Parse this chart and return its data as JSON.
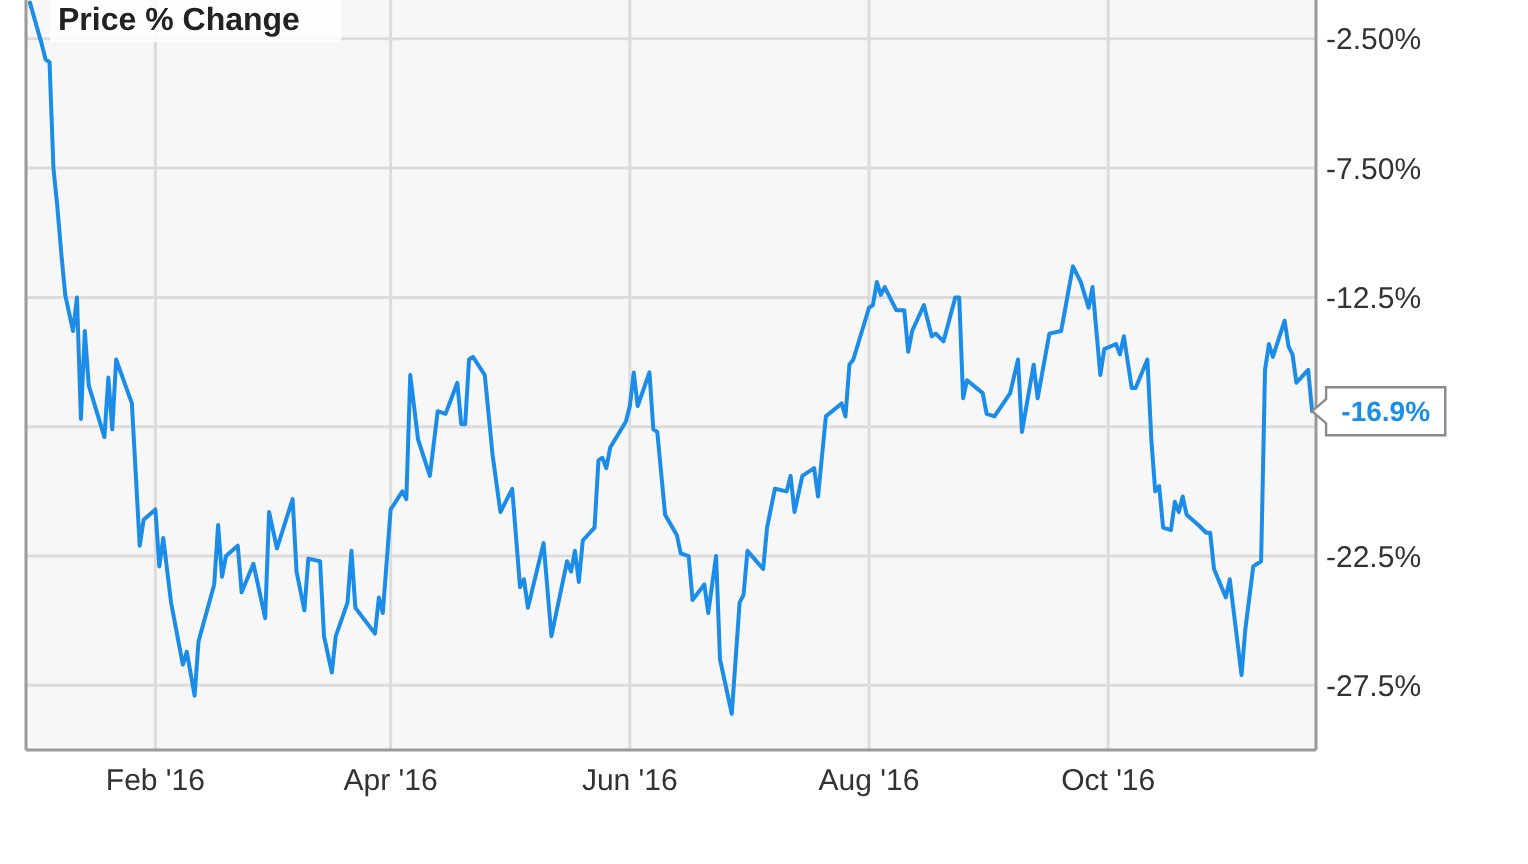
{
  "chart_data": {
    "type": "line",
    "x": [
      "2015-12-31",
      "2016-01-03",
      "2016-01-04",
      "2016-01-05",
      "2016-01-06",
      "2016-01-07",
      "2016-01-08",
      "2016-01-09",
      "2016-01-11",
      "2016-01-12",
      "2016-01-13",
      "2016-01-14",
      "2016-01-15",
      "2016-01-19",
      "2016-01-20",
      "2016-01-21",
      "2016-01-22",
      "2016-01-26",
      "2016-01-28",
      "2016-01-29",
      "2016-02-01",
      "2016-02-02",
      "2016-02-03",
      "2016-02-05",
      "2016-02-08",
      "2016-02-09",
      "2016-02-11",
      "2016-02-12",
      "2016-02-16",
      "2016-02-17",
      "2016-02-18",
      "2016-02-19",
      "2016-02-22",
      "2016-02-23",
      "2016-02-26",
      "2016-02-29",
      "2016-03-01",
      "2016-03-03",
      "2016-03-07",
      "2016-03-08",
      "2016-03-10",
      "2016-03-11",
      "2016-03-14",
      "2016-03-15",
      "2016-03-17",
      "2016-03-18",
      "2016-03-21",
      "2016-03-22",
      "2016-03-23",
      "2016-03-28",
      "2016-03-29",
      "2016-03-30",
      "2016-04-01",
      "2016-04-04",
      "2016-04-05",
      "2016-04-06",
      "2016-04-08",
      "2016-04-11",
      "2016-04-13",
      "2016-04-15",
      "2016-04-18",
      "2016-04-19",
      "2016-04-20",
      "2016-04-21",
      "2016-04-22",
      "2016-04-25",
      "2016-04-27",
      "2016-04-29",
      "2016-05-02",
      "2016-05-04",
      "2016-05-05",
      "2016-05-06",
      "2016-05-10",
      "2016-05-12",
      "2016-05-16",
      "2016-05-17",
      "2016-05-18",
      "2016-05-19",
      "2016-05-20",
      "2016-05-23",
      "2016-05-24",
      "2016-05-25",
      "2016-05-26",
      "2016-05-27",
      "2016-05-31",
      "2016-06-01",
      "2016-06-02",
      "2016-06-03",
      "2016-06-06",
      "2016-06-07",
      "2016-06-08",
      "2016-06-10",
      "2016-06-13",
      "2016-06-14",
      "2016-06-16",
      "2016-06-17",
      "2016-06-20",
      "2016-06-21",
      "2016-06-23",
      "2016-06-24",
      "2016-06-27",
      "2016-06-29",
      "2016-06-30",
      "2016-07-01",
      "2016-07-05",
      "2016-07-06",
      "2016-07-08",
      "2016-07-11",
      "2016-07-12",
      "2016-07-13",
      "2016-07-15",
      "2016-07-18",
      "2016-07-19",
      "2016-07-21",
      "2016-07-25",
      "2016-07-26",
      "2016-07-27",
      "2016-07-28",
      "2016-08-01",
      "2016-08-02",
      "2016-08-03",
      "2016-08-04",
      "2016-08-05",
      "2016-08-08",
      "2016-08-10",
      "2016-08-11",
      "2016-08-12",
      "2016-08-15",
      "2016-08-17",
      "2016-08-18",
      "2016-08-20",
      "2016-08-23",
      "2016-08-24",
      "2016-08-25",
      "2016-08-26",
      "2016-08-30",
      "2016-08-31",
      "2016-09-02",
      "2016-09-06",
      "2016-09-08",
      "2016-09-09",
      "2016-09-12",
      "2016-09-13",
      "2016-09-16",
      "2016-09-19",
      "2016-09-22",
      "2016-09-24",
      "2016-09-26",
      "2016-09-27",
      "2016-09-29",
      "2016-09-30",
      "2016-10-03",
      "2016-10-04",
      "2016-10-05",
      "2016-10-07",
      "2016-10-08",
      "2016-10-11",
      "2016-10-12",
      "2016-10-13",
      "2016-10-14",
      "2016-10-15",
      "2016-10-17",
      "2016-10-18",
      "2016-10-19",
      "2016-10-20",
      "2016-10-21",
      "2016-10-24",
      "2016-10-26",
      "2016-10-27",
      "2016-10-28",
      "2016-10-31",
      "2016-11-01",
      "2016-11-04",
      "2016-11-05",
      "2016-11-07",
      "2016-11-09",
      "2016-11-10",
      "2016-11-11",
      "2016-11-12",
      "2016-11-15",
      "2016-11-16",
      "2016-11-17",
      "2016-11-18",
      "2016-11-21",
      "2016-11-22"
    ],
    "series": [
      {
        "name": "Price % Change",
        "color": "#1b8ce8",
        "values": [
          -1.1,
          -2.7,
          -3.3,
          -3.4,
          -7.5,
          -9.0,
          -10.8,
          -12.4,
          -13.8,
          -12.5,
          -17.2,
          -13.8,
          -15.9,
          -17.9,
          -15.6,
          -17.6,
          -14.9,
          -16.6,
          -22.1,
          -21.1,
          -20.7,
          -22.9,
          -21.8,
          -24.3,
          -26.7,
          -26.2,
          -27.9,
          -25.8,
          -23.6,
          -21.3,
          -23.3,
          -22.5,
          -22.1,
          -23.9,
          -22.8,
          -24.9,
          -20.8,
          -22.2,
          -20.3,
          -23.1,
          -24.6,
          -22.6,
          -22.7,
          -25.6,
          -27.0,
          -25.6,
          -24.3,
          -22.3,
          -24.5,
          -25.5,
          -24.1,
          -24.7,
          -20.7,
          -20.0,
          -20.3,
          -15.5,
          -18.0,
          -19.4,
          -16.9,
          -17.0,
          -15.8,
          -17.4,
          -17.4,
          -14.9,
          -14.8,
          -15.5,
          -18.6,
          -20.8,
          -19.9,
          -23.7,
          -23.4,
          -24.5,
          -22.0,
          -25.6,
          -22.7,
          -23.1,
          -22.3,
          -23.5,
          -21.9,
          -21.4,
          -18.8,
          -18.7,
          -19.1,
          -18.3,
          -17.3,
          -16.7,
          -15.4,
          -16.7,
          -15.4,
          -17.6,
          -17.7,
          -20.9,
          -21.7,
          -22.4,
          -22.5,
          -24.2,
          -23.6,
          -24.7,
          -22.5,
          -26.5,
          -28.6,
          -24.3,
          -24.0,
          -22.3,
          -23.0,
          -21.4,
          -19.9,
          -20.0,
          -19.4,
          -20.8,
          -19.4,
          -19.1,
          -20.2,
          -17.1,
          -16.6,
          -17.1,
          -15.1,
          -14.9,
          -12.9,
          -12.8,
          -11.9,
          -12.4,
          -12.1,
          -13.0,
          -13.0,
          -14.6,
          -13.8,
          -12.8,
          -14.0,
          -13.9,
          -14.2,
          -12.5,
          -12.5,
          -16.4,
          -15.7,
          -16.2,
          -17.0,
          -17.1,
          -16.2,
          -14.9,
          -17.7,
          -15.1,
          -16.4,
          -13.9,
          -13.8,
          -11.3,
          -11.9,
          -12.9,
          -12.1,
          -15.5,
          -14.5,
          -14.3,
          -14.7,
          -14.0,
          -16.0,
          -16.0,
          -14.9,
          -18.0,
          -20.0,
          -19.8,
          -21.4,
          -21.5,
          -20.4,
          -20.8,
          -20.2,
          -20.9,
          -21.3,
          -21.6,
          -21.6,
          -23.0,
          -24.1,
          -23.4,
          -27.1,
          -25.3,
          -22.9,
          -22.7,
          -15.3,
          -14.3,
          -14.8,
          -13.4,
          -14.4,
          -14.7,
          -15.8,
          -15.3,
          -16.9
        ]
      }
    ],
    "xlim": [
      "2015-12-30",
      "2016-11-23"
    ],
    "xticks": [
      {
        "value": "2016-02-01",
        "label": "Feb '16"
      },
      {
        "value": "2016-04-01",
        "label": "Apr '16"
      },
      {
        "value": "2016-06-01",
        "label": "Jun '16"
      },
      {
        "value": "2016-08-01",
        "label": "Aug '16"
      },
      {
        "value": "2016-10-01",
        "label": "Oct '16"
      }
    ],
    "ylim": [
      -30,
      -1
    ],
    "yticks": [
      {
        "value": -2.5,
        "label": "-2.50%"
      },
      {
        "value": -7.5,
        "label": "-7.50%"
      },
      {
        "value": -12.5,
        "label": "-12.5%"
      },
      {
        "value": -17.5,
        "label": null
      },
      {
        "value": -22.5,
        "label": "-22.5%"
      },
      {
        "value": -27.5,
        "label": "-27.5%"
      }
    ],
    "grid": true,
    "legend": "top left",
    "annotations": [
      {
        "text": "-16.9%",
        "x": "2016-11-22",
        "y": -16.9
      }
    ]
  }
}
